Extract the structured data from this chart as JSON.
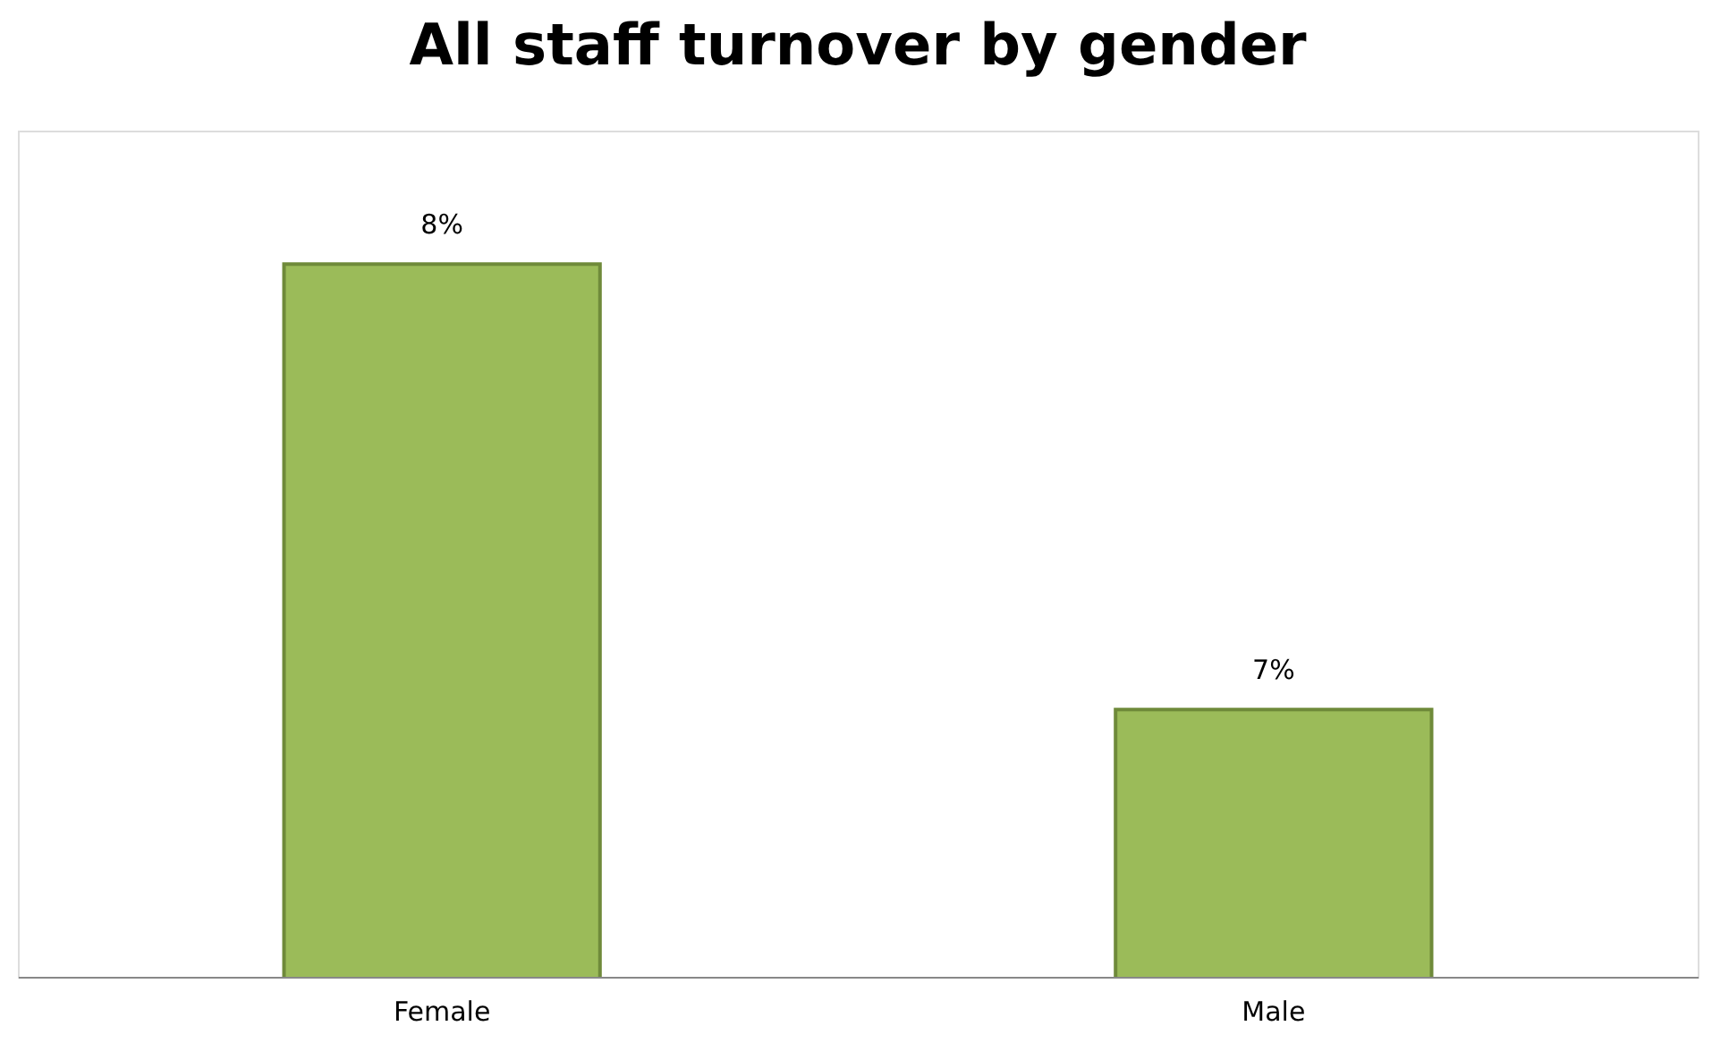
{
  "chart_data": {
    "type": "bar",
    "title": "All staff turnover by gender",
    "categories": [
      "Female",
      "Male"
    ],
    "values": [
      8,
      7
    ],
    "value_labels": [
      "8%",
      "7%"
    ],
    "color": "#9bbb59",
    "ylim": [
      6.4,
      8.3
    ],
    "tick_labels": "x",
    "grid": false
  }
}
